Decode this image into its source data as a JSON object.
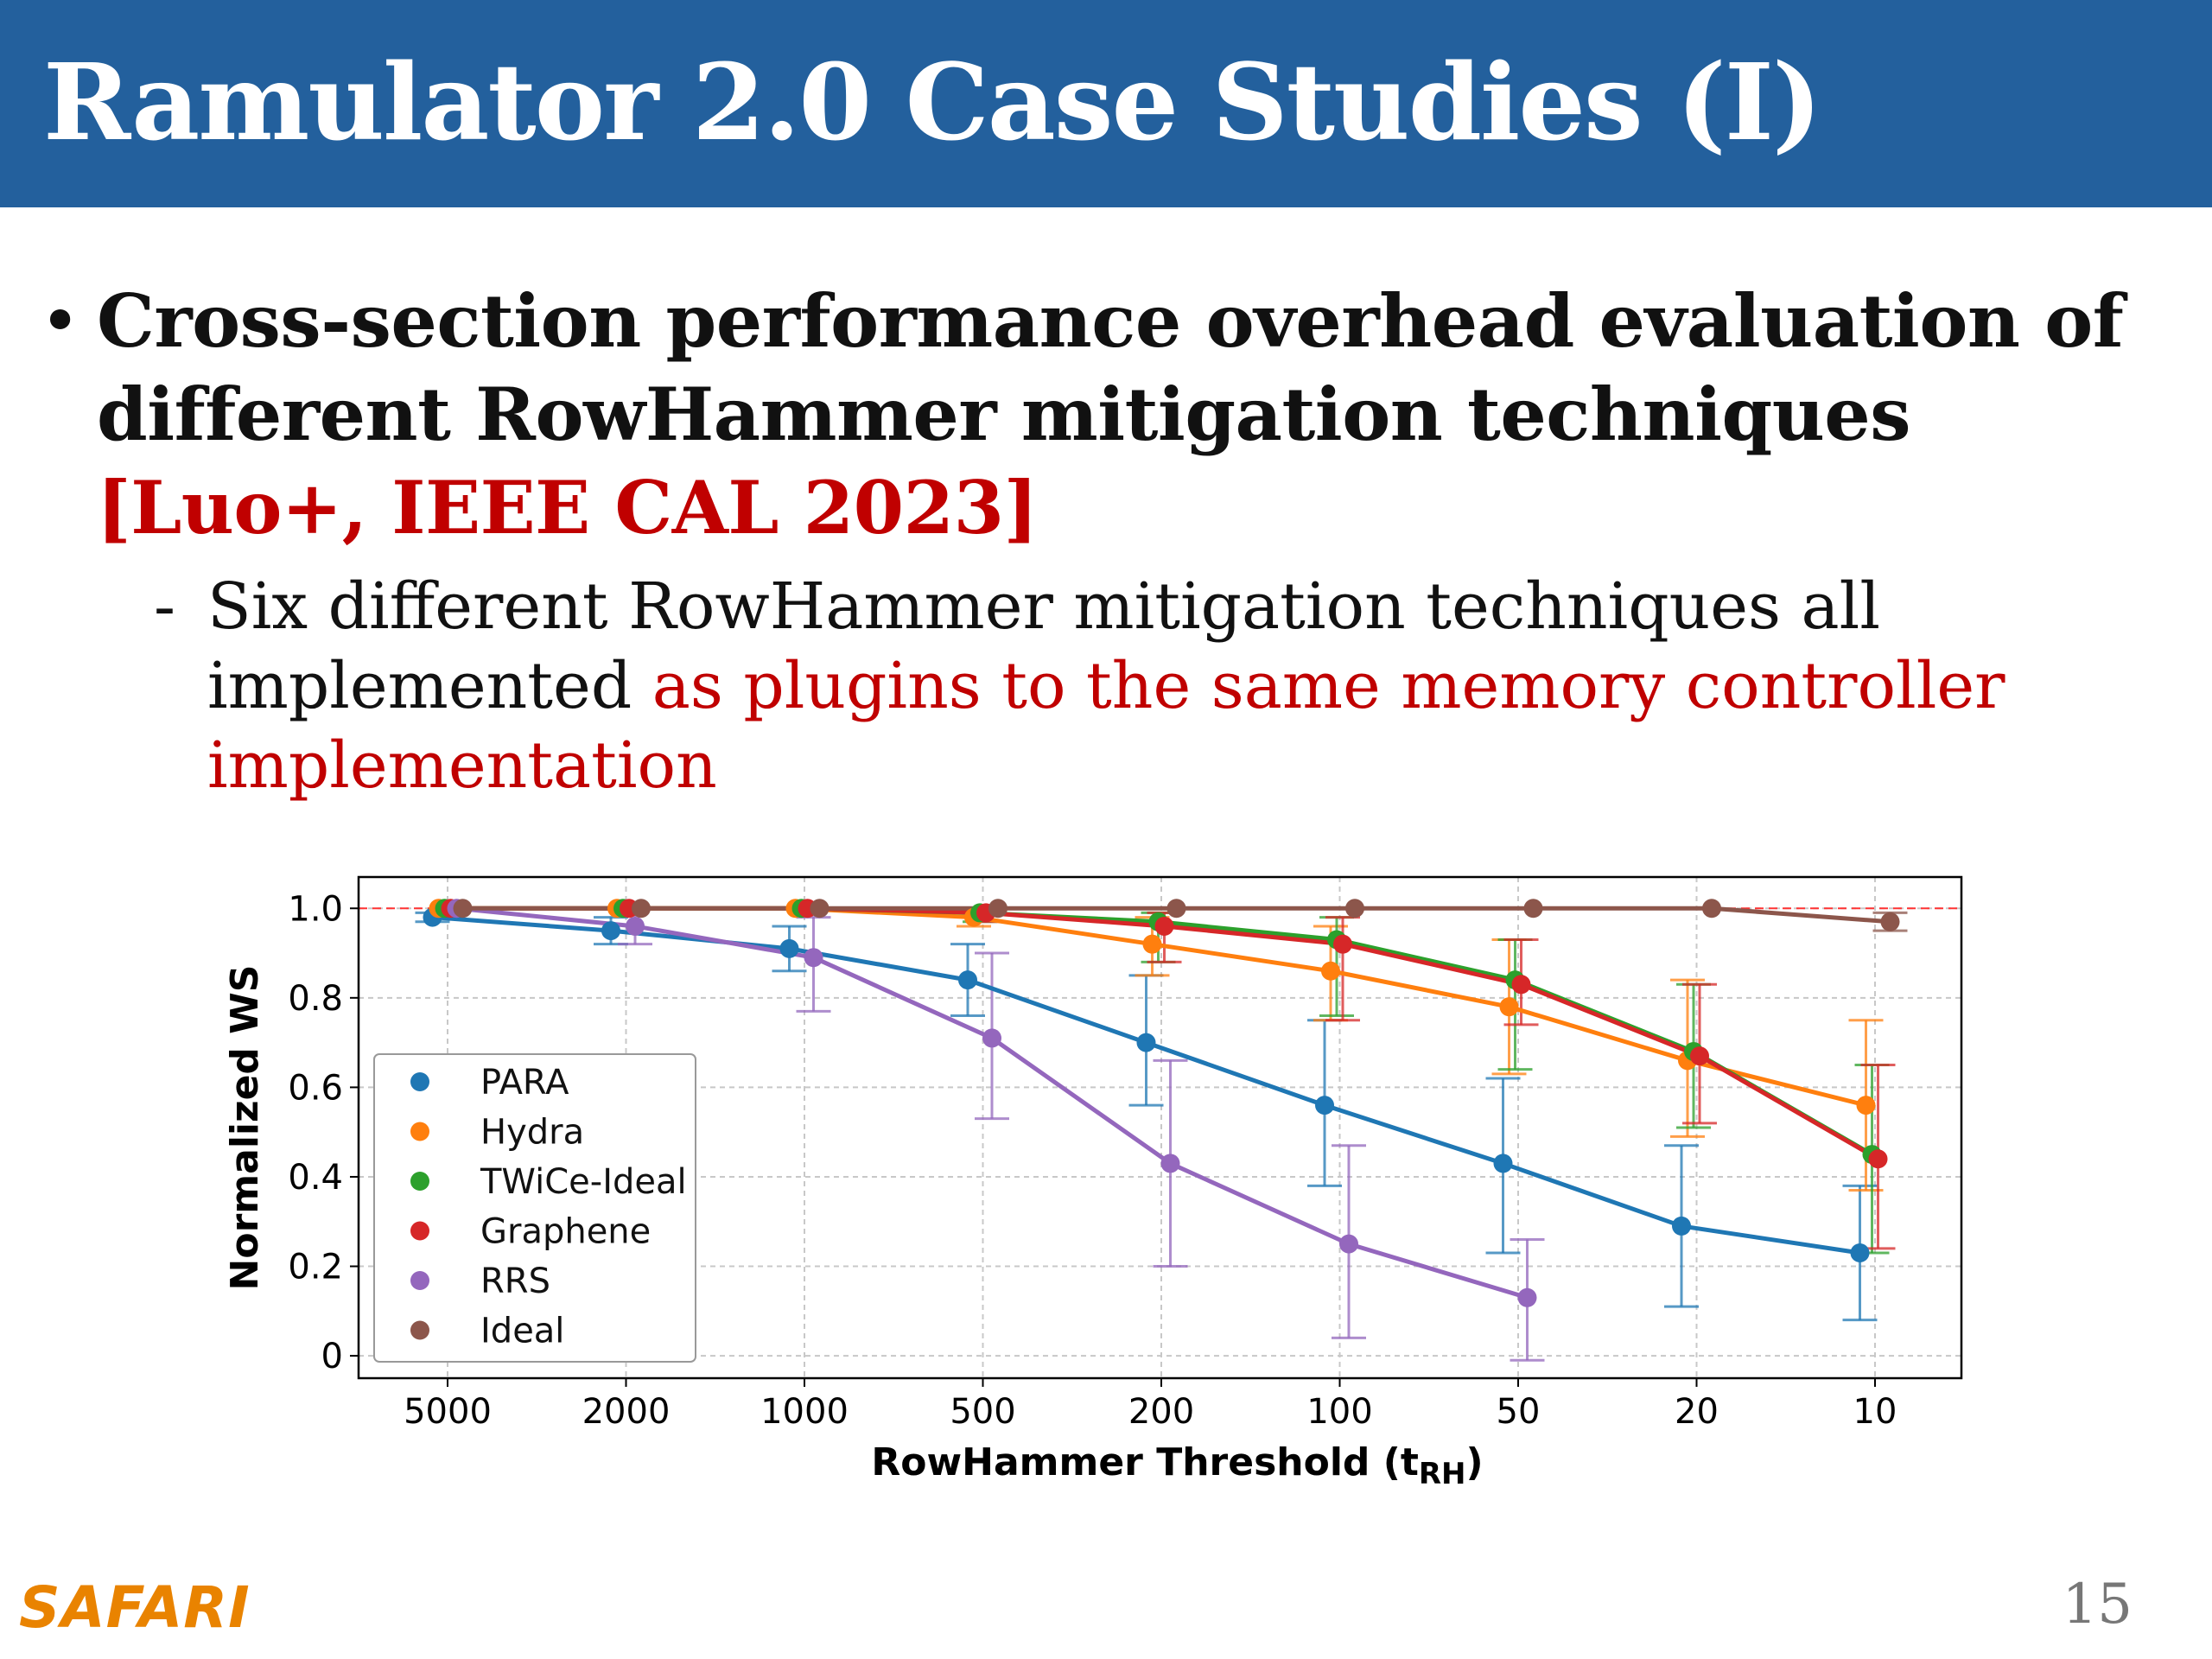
{
  "slide": {
    "title": "Ramulator 2.0 Case Studies (I)",
    "bullet": {
      "text": "Cross-section performance overhead evaluation of different RowHammer mitigation techniques",
      "reference": "[Luo+, IEEE CAL 2023]"
    },
    "sub_bullet": {
      "text_black": "Six different RowHammer mitigation techniques all implemented",
      "text_red": "as plugins to the same memory controller implementation"
    },
    "logo": "SAFARI",
    "page_number": "15"
  },
  "colors": {
    "title_bar": "#23609d",
    "reference_red": "#c00000",
    "logo_orange": "#e98300"
  },
  "chart_data": {
    "type": "line",
    "title": "",
    "xlabel": "RowHammer Threshold (t",
    "xlabel_sub": "RH",
    "xlabel_close": ")",
    "ylabel": "Normalized WS",
    "categories": [
      "5000",
      "2000",
      "1000",
      "500",
      "200",
      "100",
      "50",
      "20",
      "10"
    ],
    "ylim": [
      -0.05,
      1.07
    ],
    "yticks": [
      0,
      0.2,
      0.4,
      0.6,
      0.8,
      1.0
    ],
    "ytick_labels": [
      "0",
      "0.2",
      "0.4",
      "0.6",
      "0.8",
      "1.0"
    ],
    "grid": true,
    "reference_line": 1.0,
    "legend": "lower-left",
    "series": [
      {
        "name": "PARA",
        "color": "#1f77b4",
        "values": [
          0.98,
          0.95,
          0.91,
          0.84,
          0.7,
          0.56,
          0.43,
          0.29,
          0.23
        ],
        "err_low": [
          0.97,
          0.92,
          0.86,
          0.76,
          0.56,
          0.38,
          0.23,
          0.11,
          0.08
        ],
        "err_high": [
          0.99,
          0.98,
          0.96,
          0.92,
          0.85,
          0.75,
          0.62,
          0.47,
          0.38
        ]
      },
      {
        "name": "Hydra",
        "color": "#ff7f0e",
        "values": [
          1.0,
          1.0,
          1.0,
          0.98,
          0.92,
          0.86,
          0.78,
          0.66,
          0.56
        ],
        "err_low": [
          1.0,
          0.99,
          0.99,
          0.96,
          0.85,
          0.75,
          0.63,
          0.49,
          0.37
        ],
        "err_high": [
          1.0,
          1.0,
          1.0,
          1.0,
          0.98,
          0.96,
          0.93,
          0.84,
          0.75
        ]
      },
      {
        "name": "TWiCe-Ideal",
        "color": "#2ca02c",
        "values": [
          1.0,
          1.0,
          1.0,
          0.99,
          0.97,
          0.93,
          0.84,
          0.68,
          0.45
        ],
        "err_low": [
          1.0,
          1.0,
          0.99,
          0.97,
          0.88,
          0.76,
          0.64,
          0.51,
          0.23
        ],
        "err_high": [
          1.0,
          1.0,
          1.0,
          1.0,
          0.99,
          0.98,
          0.93,
          0.83,
          0.65
        ]
      },
      {
        "name": "Graphene",
        "color": "#d62728",
        "values": [
          1.0,
          1.0,
          1.0,
          0.99,
          0.96,
          0.92,
          0.83,
          0.67,
          0.44
        ],
        "err_low": [
          1.0,
          1.0,
          0.99,
          0.97,
          0.88,
          0.75,
          0.74,
          0.52,
          0.24
        ],
        "err_high": [
          1.0,
          1.0,
          1.0,
          1.0,
          0.99,
          0.98,
          0.93,
          0.83,
          0.65
        ]
      },
      {
        "name": "RRS",
        "color": "#9467bd",
        "values": [
          1.0,
          0.96,
          0.89,
          0.71,
          0.43,
          0.25,
          0.13,
          null,
          null
        ],
        "err_low": [
          0.99,
          0.92,
          0.77,
          0.53,
          0.2,
          0.04,
          -0.01,
          null,
          null
        ],
        "err_high": [
          1.0,
          1.0,
          0.98,
          0.9,
          0.66,
          0.47,
          0.26,
          null,
          null
        ]
      },
      {
        "name": "Ideal",
        "color": "#8c564b",
        "values": [
          1.0,
          1.0,
          1.0,
          1.0,
          1.0,
          1.0,
          1.0,
          1.0,
          0.97
        ],
        "err_low": [
          null,
          null,
          null,
          null,
          null,
          null,
          null,
          null,
          0.95
        ],
        "err_high": [
          null,
          null,
          null,
          null,
          null,
          null,
          null,
          null,
          0.99
        ]
      }
    ]
  }
}
